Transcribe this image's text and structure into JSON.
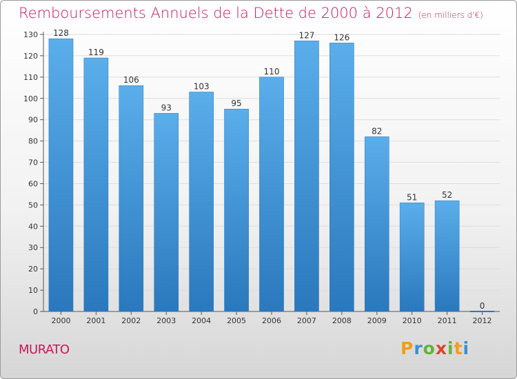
{
  "title": "Remboursements Annuels de la Dette de 2000 à 2012",
  "unit": "(en milliers d'€)",
  "town": "MURATO",
  "brand": {
    "letters": [
      "P",
      "r",
      "o",
      "x",
      "i",
      "t",
      "i"
    ],
    "colors": [
      "#f39c1a",
      "#3a8fd6",
      "#63b33a",
      "#e0422f",
      "#63b33a",
      "#f39c1a",
      "#3a8fd6"
    ]
  },
  "colors": {
    "bar_top": "#5aaeea",
    "bar_bottom": "#2a78bd",
    "title": "#c8185a"
  },
  "chart_data": {
    "type": "bar",
    "categories": [
      "2000",
      "2001",
      "2002",
      "2003",
      "2004",
      "2005",
      "2006",
      "2007",
      "2008",
      "2009",
      "2010",
      "2011",
      "2012"
    ],
    "values": [
      128,
      119,
      106,
      93,
      103,
      95,
      110,
      127,
      126,
      82,
      51,
      52,
      0
    ],
    "ylim": [
      0,
      130
    ],
    "yticks": [
      0,
      10,
      20,
      30,
      40,
      50,
      60,
      70,
      80,
      90,
      100,
      110,
      120,
      130
    ],
    "grid": true,
    "legend": "none"
  }
}
